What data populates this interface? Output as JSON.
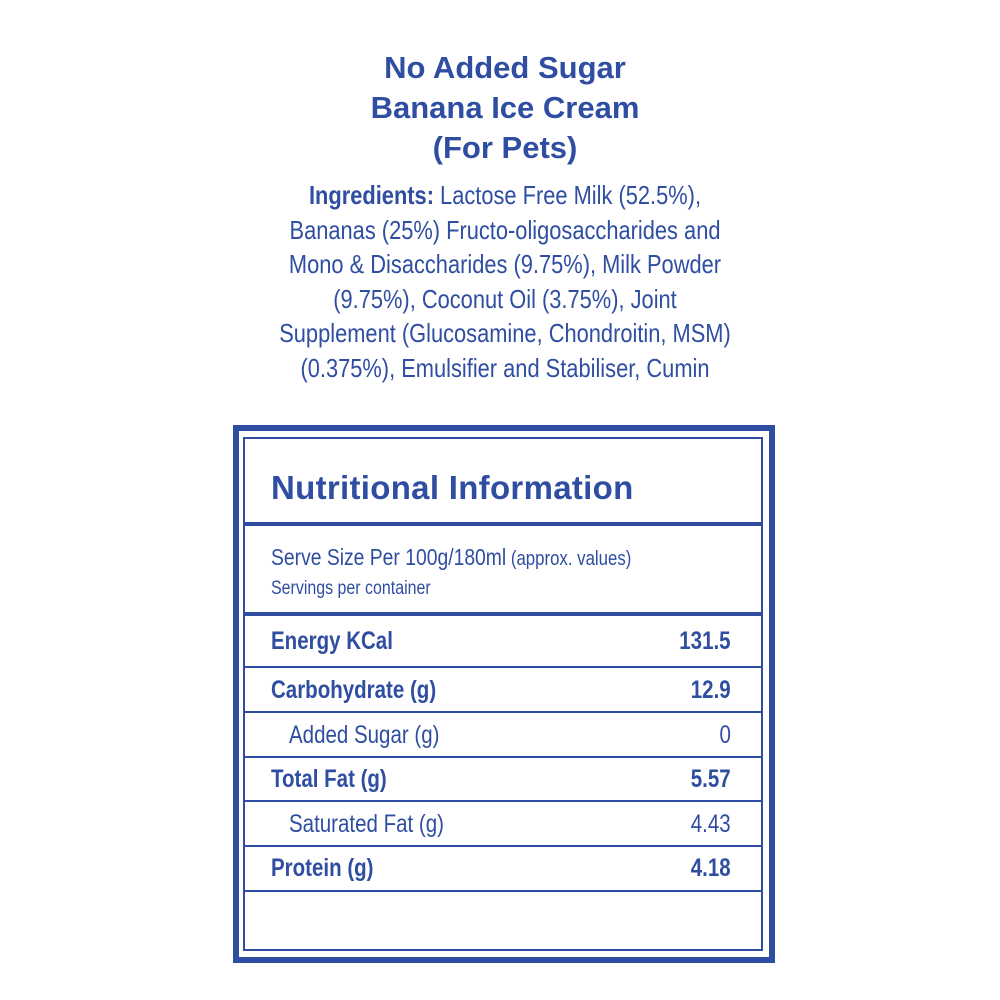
{
  "title": [
    "No Added Sugar",
    "Banana Ice Cream",
    "(For Pets)"
  ],
  "ingredients": {
    "label": "Ingredients:",
    "lines": [
      " Lactose Free Milk (52.5%),",
      "Bananas (25%) Fructo-oligosaccharides and",
      "Mono & Disaccharides (9.75%), Milk Powder",
      "(9.75%), Coconut Oil (3.75%), Joint",
      "Supplement (Glucosamine, Chondroitin, MSM)",
      "(0.375%), Emulsifier and Stabiliser, Cumin"
    ]
  },
  "nutrition": {
    "heading": "Nutritional Information",
    "serve_size": "Serve Size Per 100g/180ml",
    "approx": " (approx. values)",
    "servings": "Servings per container",
    "rows": [
      {
        "label": "Energy KCal",
        "value": "131.5",
        "bold": true
      },
      {
        "label": "Carbohydrate (g)",
        "value": "12.9",
        "bold": true
      },
      {
        "label": "Added Sugar (g)",
        "value": "0",
        "bold": false
      },
      {
        "label": "Total Fat (g)",
        "value": "5.57",
        "bold": true
      },
      {
        "label": "Saturated Fat (g)",
        "value": "4.43",
        "bold": false
      },
      {
        "label": "Protein (g)",
        "value": "4.18",
        "bold": true
      }
    ]
  },
  "colors": {
    "brand_blue": "#2f4ea2"
  }
}
